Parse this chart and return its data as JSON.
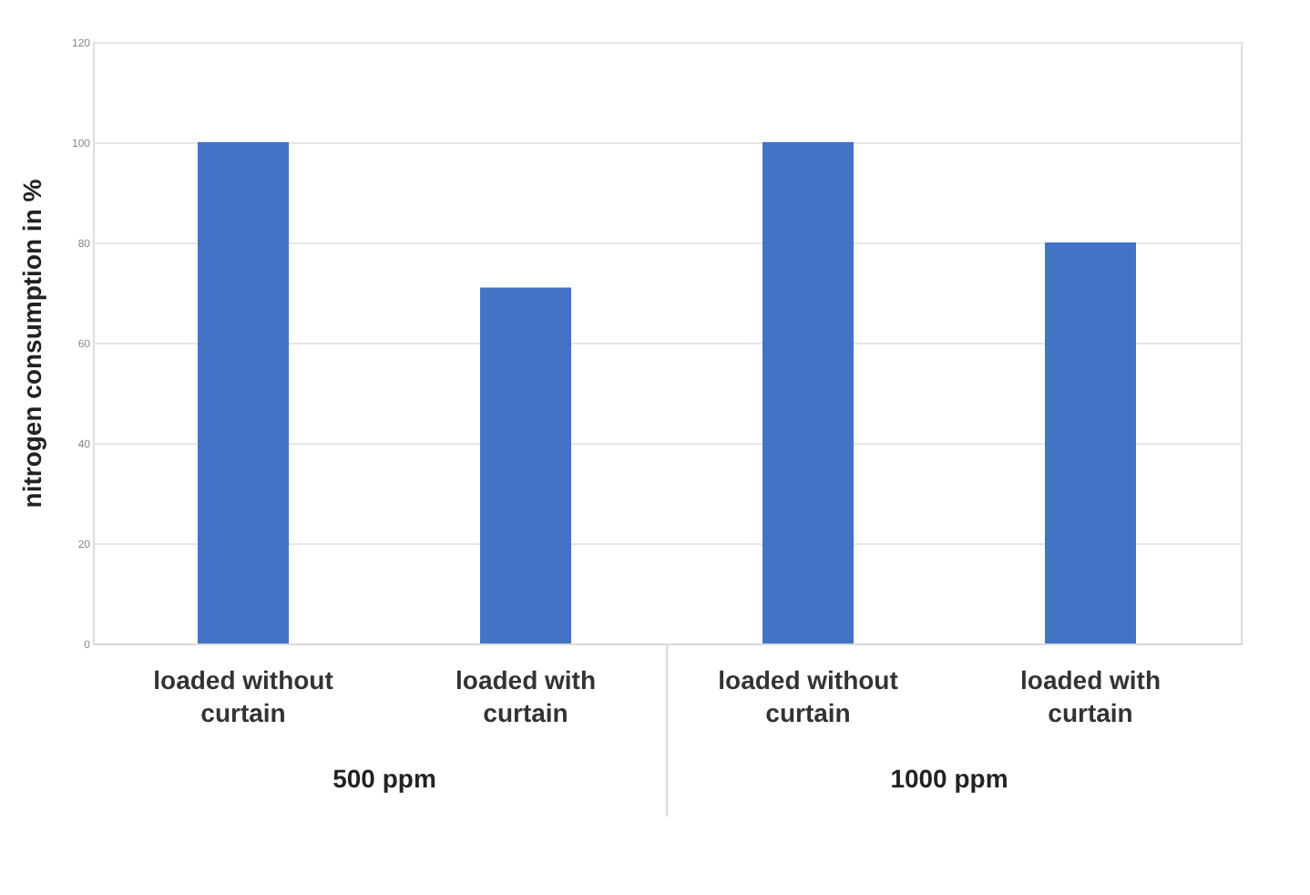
{
  "chart_data": {
    "type": "bar",
    "ylabel": "nitrogen consumption in %",
    "categories": [
      "loaded without curtain",
      "loaded with curtain",
      "loaded without curtain",
      "loaded with curtain"
    ],
    "values": [
      100,
      71,
      100,
      80
    ],
    "color": "#4472c4",
    "ylim": [
      0,
      120
    ],
    "yticks": [
      0,
      20,
      40,
      60,
      80,
      100,
      120
    ],
    "grid": "y",
    "annotations": [
      "500 ppm",
      "1000 ppm"
    ]
  }
}
